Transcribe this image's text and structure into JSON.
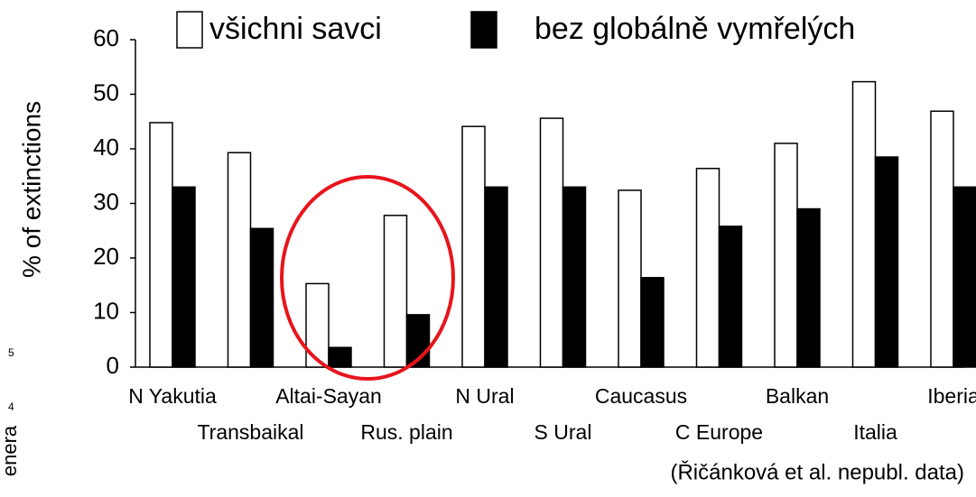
{
  "chart_data": {
    "type": "bar",
    "ylabel": "% of extinctions",
    "annotation": "(Řičánková et al. nepubl. data)",
    "fragments": [
      "5",
      "4",
      "enera"
    ],
    "categories": [
      "N Yakutia",
      "Transbaikal",
      "Altai-Sayan",
      "Rus. plain",
      "N Ural",
      "S Ural",
      "Caucasus",
      "C Europe",
      "Balkan",
      "Italia",
      "Iberia"
    ],
    "series": [
      {
        "name": "všichni savci",
        "color": "#ffffff",
        "values": [
          44.8,
          39.3,
          15.3,
          27.8,
          44.1,
          45.6,
          32.4,
          36.4,
          41.0,
          52.3,
          46.9
        ]
      },
      {
        "name": "bez globálně vymřelých",
        "color": "#000000",
        "values": [
          33,
          25.4,
          3.6,
          9.6,
          33,
          33,
          16.4,
          25.8,
          29,
          38.5,
          33
        ]
      }
    ],
    "ylim": [
      0,
      60
    ],
    "yticks": [
      0,
      10,
      20,
      30,
      40,
      50,
      60
    ],
    "grid": false
  }
}
